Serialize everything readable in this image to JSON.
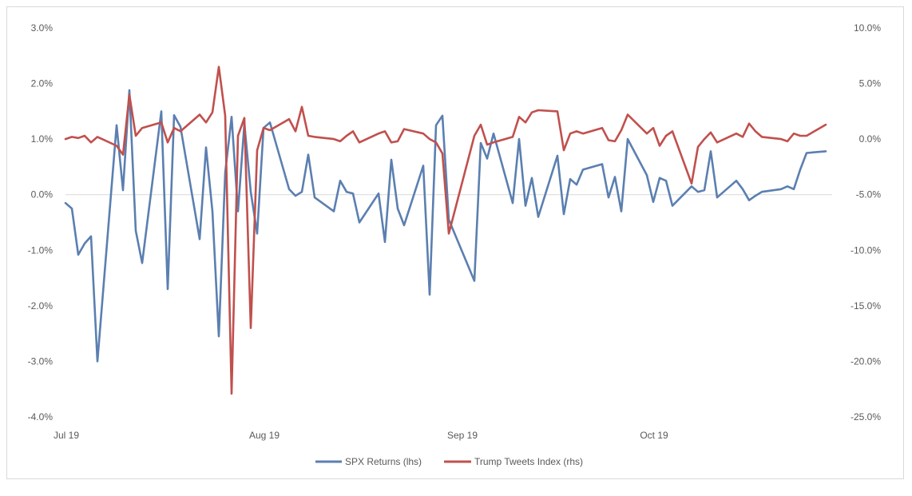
{
  "chart_data": {
    "type": "line",
    "title": "",
    "xlabel": "",
    "ylabel": "",
    "left_axis": {
      "ylim": [
        -0.04,
        0.03
      ],
      "ticks": [
        0.03,
        0.02,
        0.01,
        0.0,
        -0.01,
        -0.02,
        -0.03,
        -0.04
      ],
      "tick_labels": [
        "3.0%",
        "2.0%",
        "1.0%",
        "0.0%",
        "-1.0%",
        "-2.0%",
        "-3.0%",
        "-4.0%"
      ]
    },
    "right_axis": {
      "ylim": [
        -0.25,
        0.1
      ],
      "ticks": [
        0.1,
        0.05,
        0.0,
        -0.05,
        -0.1,
        -0.15,
        -0.2,
        -0.25
      ],
      "tick_labels": [
        "10.0%",
        "5.0%",
        "0.0%",
        "-5.0%",
        "-10.0%",
        "-15.0%",
        "-20.0%",
        "-25.0%"
      ]
    },
    "x_axis": {
      "range": [
        "2019-07-01",
        "2019-10-29"
      ],
      "ticks": [
        "2019-07-01",
        "2019-08-01",
        "2019-09-01",
        "2019-10-01"
      ],
      "tick_labels": [
        "Jul 19",
        "Aug 19",
        "Sep 19",
        "Oct 19"
      ]
    },
    "grid": false,
    "legend_position": "bottom-center",
    "series": [
      {
        "name": "SPX Returns (lhs)",
        "axis": "left",
        "color": "#5b7fb0",
        "x": [
          "2019-07-01",
          "2019-07-02",
          "2019-07-03",
          "2019-07-04",
          "2019-07-05",
          "2019-07-06",
          "2019-07-09",
          "2019-07-10",
          "2019-07-11",
          "2019-07-12",
          "2019-07-13",
          "2019-07-16",
          "2019-07-17",
          "2019-07-18",
          "2019-07-19",
          "2019-07-22",
          "2019-07-23",
          "2019-07-24",
          "2019-07-25",
          "2019-07-26",
          "2019-07-27",
          "2019-07-28",
          "2019-07-29",
          "2019-07-30",
          "2019-07-31",
          "2019-08-01",
          "2019-08-02",
          "2019-08-05",
          "2019-08-06",
          "2019-08-07",
          "2019-08-08",
          "2019-08-09",
          "2019-08-12",
          "2019-08-13",
          "2019-08-14",
          "2019-08-15",
          "2019-08-16",
          "2019-08-19",
          "2019-08-20",
          "2019-08-21",
          "2019-08-22",
          "2019-08-23",
          "2019-08-26",
          "2019-08-27",
          "2019-08-28",
          "2019-08-29",
          "2019-08-30",
          "2019-09-03",
          "2019-09-04",
          "2019-09-05",
          "2019-09-06",
          "2019-09-09",
          "2019-09-10",
          "2019-09-11",
          "2019-09-12",
          "2019-09-13",
          "2019-09-16",
          "2019-09-17",
          "2019-09-18",
          "2019-09-19",
          "2019-09-20",
          "2019-09-23",
          "2019-09-24",
          "2019-09-25",
          "2019-09-26",
          "2019-09-27",
          "2019-09-30",
          "2019-10-01",
          "2019-10-02",
          "2019-10-03",
          "2019-10-04",
          "2019-10-07",
          "2019-10-08",
          "2019-10-09",
          "2019-10-10",
          "2019-10-11",
          "2019-10-14",
          "2019-10-15",
          "2019-10-16",
          "2019-10-17",
          "2019-10-18",
          "2019-10-21",
          "2019-10-22",
          "2019-10-23",
          "2019-10-24",
          "2019-10-25",
          "2019-10-28"
        ],
        "y": [
          -0.0015,
          -0.0025,
          -0.0108,
          -0.0088,
          -0.0075,
          -0.03,
          0.0125,
          0.0008,
          0.0188,
          -0.0065,
          -0.0123,
          0.015,
          -0.017,
          0.0143,
          0.0122,
          -0.008,
          0.0085,
          -0.003,
          -0.0255,
          0.004,
          0.014,
          -0.003,
          0.0128,
          0.0005,
          -0.007,
          0.012,
          0.013,
          0.001,
          -0.0002,
          0.0005,
          0.0072,
          -0.0005,
          -0.003,
          0.0025,
          0.0005,
          0.0002,
          -0.005,
          0.0002,
          -0.0085,
          0.0063,
          -0.0025,
          -0.0055,
          0.0052,
          -0.018,
          0.0125,
          0.0142,
          -0.0045,
          -0.0155,
          0.0093,
          0.0065,
          0.011,
          -0.0015,
          0.01,
          -0.002,
          0.003,
          -0.004,
          0.007,
          -0.0035,
          0.0028,
          0.0018,
          0.0045,
          0.0055,
          -0.0005,
          0.0032,
          -0.003,
          0.01,
          0.0035,
          -0.0013,
          0.003,
          0.0025,
          -0.002,
          0.0015,
          0.0005,
          0.0008,
          0.0078,
          -0.0005,
          0.0025,
          0.001,
          -0.001,
          -0.0002,
          0.0005,
          0.001,
          0.0015,
          0.001,
          0.0045,
          0.0075,
          0.0078
        ]
      },
      {
        "name": "Trump Tweets Index (rhs)",
        "axis": "right",
        "color": "#c0504d",
        "x": [
          "2019-07-01",
          "2019-07-02",
          "2019-07-03",
          "2019-07-04",
          "2019-07-05",
          "2019-07-06",
          "2019-07-09",
          "2019-07-10",
          "2019-07-11",
          "2019-07-12",
          "2019-07-13",
          "2019-07-16",
          "2019-07-17",
          "2019-07-18",
          "2019-07-19",
          "2019-07-22",
          "2019-07-23",
          "2019-07-24",
          "2019-07-25",
          "2019-07-26",
          "2019-07-27",
          "2019-07-28",
          "2019-07-29",
          "2019-07-30",
          "2019-07-31",
          "2019-08-01",
          "2019-08-02",
          "2019-08-05",
          "2019-08-06",
          "2019-08-07",
          "2019-08-08",
          "2019-08-09",
          "2019-08-12",
          "2019-08-13",
          "2019-08-14",
          "2019-08-15",
          "2019-08-16",
          "2019-08-19",
          "2019-08-20",
          "2019-08-21",
          "2019-08-22",
          "2019-08-23",
          "2019-08-26",
          "2019-08-27",
          "2019-08-28",
          "2019-08-29",
          "2019-08-30",
          "2019-09-03",
          "2019-09-04",
          "2019-09-05",
          "2019-09-06",
          "2019-09-09",
          "2019-09-10",
          "2019-09-11",
          "2019-09-12",
          "2019-09-13",
          "2019-09-16",
          "2019-09-17",
          "2019-09-18",
          "2019-09-19",
          "2019-09-20",
          "2019-09-23",
          "2019-09-24",
          "2019-09-25",
          "2019-09-26",
          "2019-09-27",
          "2019-09-30",
          "2019-10-01",
          "2019-10-02",
          "2019-10-03",
          "2019-10-04",
          "2019-10-07",
          "2019-10-08",
          "2019-10-09",
          "2019-10-10",
          "2019-10-11",
          "2019-10-14",
          "2019-10-15",
          "2019-10-16",
          "2019-10-17",
          "2019-10-18",
          "2019-10-21",
          "2019-10-22",
          "2019-10-23",
          "2019-10-24",
          "2019-10-25",
          "2019-10-28"
        ],
        "y": [
          0.0,
          0.002,
          0.001,
          0.003,
          -0.003,
          0.002,
          -0.006,
          -0.014,
          0.04,
          0.003,
          0.01,
          0.015,
          -0.003,
          0.01,
          0.007,
          0.022,
          0.015,
          0.024,
          0.065,
          0.021,
          -0.229,
          0.003,
          0.019,
          -0.17,
          -0.01,
          0.01,
          0.008,
          0.018,
          0.007,
          0.029,
          0.003,
          0.002,
          0.0,
          -0.002,
          0.003,
          0.007,
          -0.003,
          0.005,
          0.007,
          -0.003,
          -0.002,
          0.009,
          0.005,
          0.0,
          -0.003,
          -0.013,
          -0.085,
          0.003,
          0.013,
          -0.005,
          -0.003,
          0.002,
          0.02,
          0.015,
          0.024,
          0.026,
          0.025,
          -0.01,
          0.005,
          0.007,
          0.005,
          0.01,
          -0.001,
          -0.002,
          0.008,
          0.022,
          0.005,
          0.01,
          -0.006,
          0.003,
          0.007,
          -0.04,
          -0.007,
          0.0,
          0.006,
          -0.003,
          0.005,
          0.002,
          0.014,
          0.007,
          0.002,
          0.0,
          -0.002,
          0.005,
          0.003,
          0.003,
          0.013
        ]
      }
    ]
  }
}
